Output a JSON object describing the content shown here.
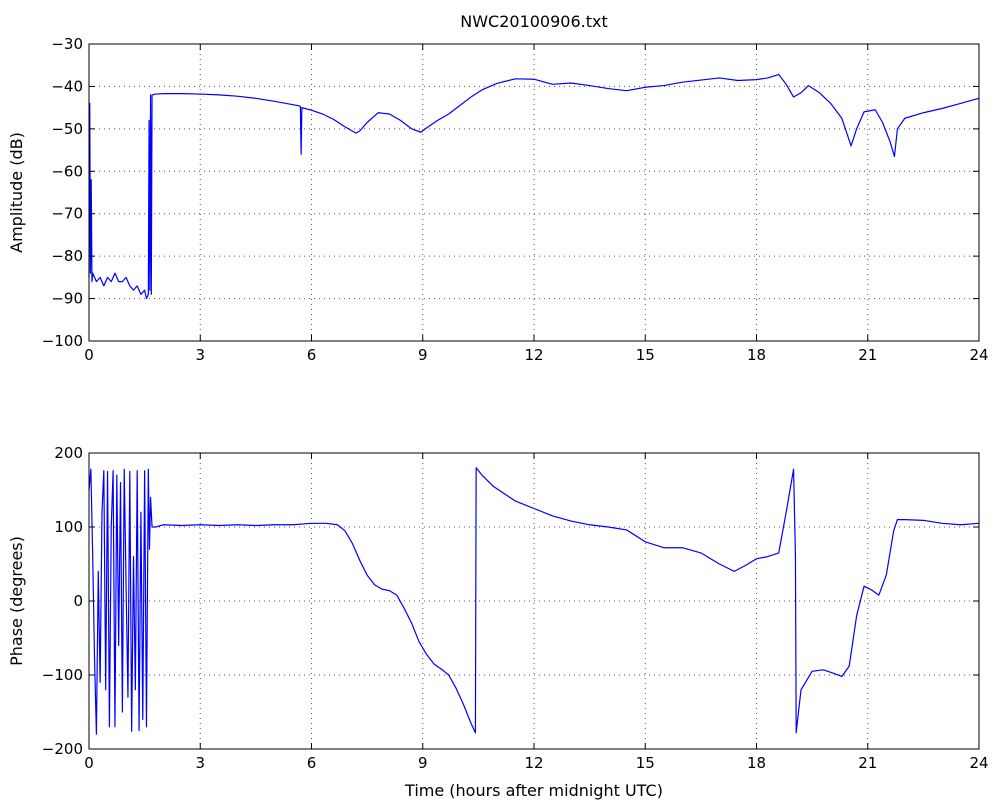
{
  "chart_data": [
    {
      "type": "line",
      "title": "NWC20100906.txt",
      "xlabel": "",
      "ylabel": "Amplitude (dB)",
      "xlim": [
        0,
        24
      ],
      "ylim": [
        -100,
        -30
      ],
      "xticks": [
        0,
        3,
        6,
        9,
        12,
        15,
        18,
        21,
        24
      ],
      "yticks": [
        -100,
        -90,
        -80,
        -70,
        -60,
        -50,
        -40,
        -30
      ],
      "grid": true,
      "series": [
        {
          "color": "#0000ff",
          "x": [
            0.0,
            0.02,
            0.04,
            0.06,
            0.08,
            0.1,
            0.2,
            0.3,
            0.4,
            0.5,
            0.6,
            0.7,
            0.8,
            0.9,
            1.0,
            1.1,
            1.2,
            1.3,
            1.4,
            1.5,
            1.55,
            1.6,
            1.62,
            1.64,
            1.66,
            1.68,
            1.7,
            1.8,
            2.0,
            2.5,
            3.0,
            3.5,
            4.0,
            4.5,
            5.0,
            5.5,
            5.68,
            5.7,
            5.72,
            5.74,
            6.0,
            6.3,
            6.6,
            6.9,
            7.2,
            7.3,
            7.5,
            7.8,
            8.1,
            8.4,
            8.7,
            8.95,
            9.1,
            9.4,
            9.7,
            10.0,
            10.3,
            10.6,
            11.0,
            11.5,
            12.0,
            12.5,
            13.0,
            13.5,
            14.0,
            14.5,
            15.0,
            15.5,
            16.0,
            16.5,
            17.0,
            17.5,
            18.0,
            18.3,
            18.6,
            18.8,
            19.0,
            19.2,
            19.4,
            19.7,
            20.0,
            20.3,
            20.55,
            20.7,
            20.9,
            21.2,
            21.4,
            21.6,
            21.72,
            21.8,
            22.0,
            22.5,
            23.0,
            23.5,
            24.0
          ],
          "y": [
            -85,
            -44,
            -84,
            -62,
            -86,
            -84,
            -86,
            -85,
            -87,
            -85,
            -86,
            -84,
            -86,
            -86,
            -85,
            -87,
            -88,
            -87,
            -89,
            -88,
            -90,
            -89,
            -48,
            -88,
            -42,
            -89,
            -42,
            -41.8,
            -41.7,
            -41.7,
            -41.8,
            -42.0,
            -42.3,
            -42.8,
            -43.5,
            -44.3,
            -44.6,
            -44.8,
            -56,
            -45.0,
            -45.6,
            -46.5,
            -47.8,
            -49.5,
            -51.0,
            -50.5,
            -48.5,
            -46.2,
            -46.5,
            -48.0,
            -50.0,
            -50.8,
            -49.8,
            -48.0,
            -46.5,
            -44.5,
            -42.5,
            -40.8,
            -39.3,
            -38.2,
            -38.3,
            -39.5,
            -39.2,
            -39.8,
            -40.5,
            -41.0,
            -40.2,
            -39.8,
            -39.0,
            -38.5,
            -38.0,
            -38.6,
            -38.4,
            -38.0,
            -37.2,
            -39.5,
            -42.5,
            -41.5,
            -39.8,
            -41.5,
            -44.0,
            -47.5,
            -54.0,
            -50.0,
            -46.0,
            -45.5,
            -48.5,
            -53.0,
            -56.5,
            -50.0,
            -47.5,
            -46.2,
            -45.2,
            -44.0,
            -42.8
          ]
        }
      ]
    },
    {
      "type": "line",
      "title": "",
      "xlabel": "Time (hours after midnight UTC)",
      "ylabel": "Phase (degrees)",
      "xlim": [
        0,
        24
      ],
      "ylim": [
        -200,
        200
      ],
      "xticks": [
        0,
        3,
        6,
        9,
        12,
        15,
        18,
        21,
        24
      ],
      "yticks": [
        -200,
        -100,
        0,
        100,
        200
      ],
      "grid": true,
      "series": [
        {
          "color": "#0000ff",
          "x": [
            0.0,
            0.05,
            0.1,
            0.15,
            0.2,
            0.25,
            0.3,
            0.35,
            0.4,
            0.45,
            0.5,
            0.55,
            0.6,
            0.65,
            0.7,
            0.75,
            0.8,
            0.85,
            0.9,
            0.95,
            1.0,
            1.05,
            1.1,
            1.15,
            1.2,
            1.25,
            1.3,
            1.35,
            1.4,
            1.45,
            1.5,
            1.55,
            1.6,
            1.63,
            1.66,
            1.7,
            1.8,
            2.0,
            2.5,
            3.0,
            3.5,
            4.0,
            4.5,
            5.0,
            5.5,
            6.0,
            6.4,
            6.7,
            6.9,
            7.1,
            7.3,
            7.5,
            7.7,
            7.9,
            8.1,
            8.3,
            8.5,
            8.7,
            8.9,
            9.1,
            9.3,
            9.5,
            9.7,
            9.9,
            10.1,
            10.3,
            10.42,
            10.44,
            10.6,
            10.9,
            11.2,
            11.5,
            12.0,
            12.5,
            13.0,
            13.5,
            14.0,
            14.5,
            15.0,
            15.5,
            16.0,
            16.5,
            17.0,
            17.4,
            17.7,
            18.0,
            18.3,
            18.6,
            18.8,
            19.0,
            19.05,
            19.07,
            19.2,
            19.5,
            19.8,
            20.1,
            20.3,
            20.5,
            20.7,
            20.9,
            21.1,
            21.3,
            21.5,
            21.7,
            21.8,
            22.0,
            22.5,
            23.0,
            23.5,
            24.0
          ],
          "y": [
            150,
            178,
            60,
            -80,
            -180,
            40,
            -110,
            120,
            176,
            -120,
            175,
            -170,
            100,
            176,
            -170,
            170,
            -60,
            160,
            -150,
            178,
            20,
            -130,
            175,
            -176,
            60,
            -120,
            176,
            -175,
            120,
            -160,
            176,
            -170,
            178,
            70,
            140,
            100,
            100,
            103,
            102,
            103,
            102,
            103,
            102,
            103,
            103,
            105,
            105,
            103,
            95,
            78,
            55,
            35,
            22,
            16,
            14,
            8,
            -10,
            -30,
            -55,
            -72,
            -85,
            -92,
            -100,
            -118,
            -140,
            -165,
            -178,
            180,
            170,
            155,
            145,
            135,
            125,
            115,
            108,
            103,
            100,
            96,
            80,
            72,
            72,
            65,
            50,
            40,
            48,
            57,
            60,
            65,
            120,
            178,
            60,
            -178,
            -120,
            -95,
            -93,
            -98,
            -102,
            -88,
            -20,
            20,
            15,
            8,
            35,
            95,
            110,
            110,
            109,
            105,
            103,
            105
          ]
        }
      ]
    }
  ]
}
